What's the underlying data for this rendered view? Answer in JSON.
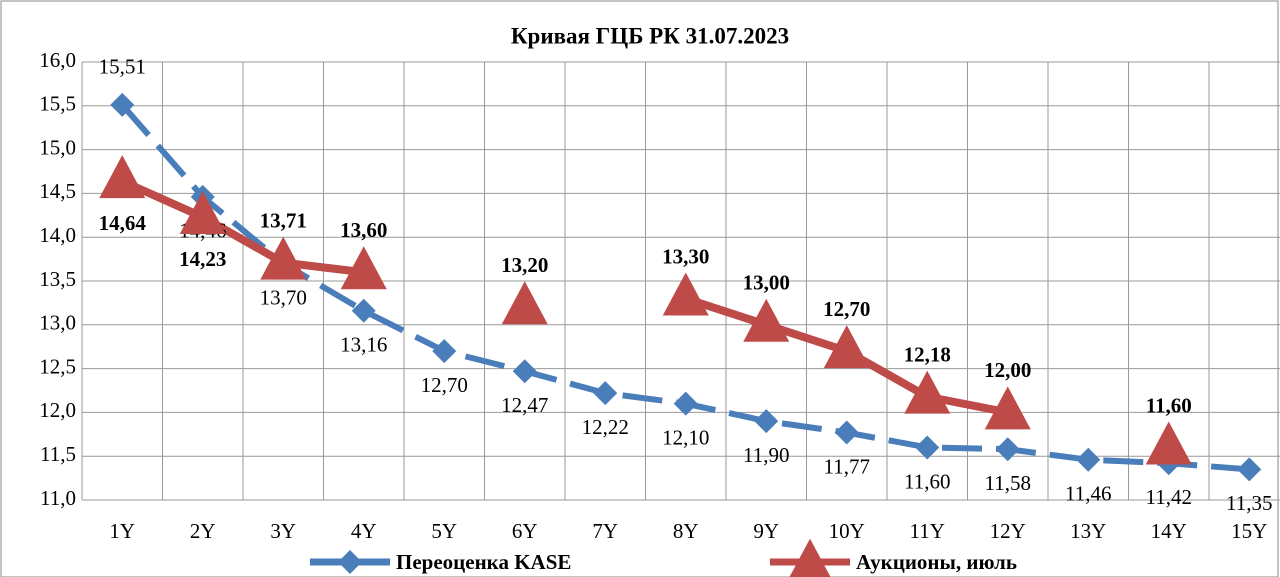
{
  "chart_data": {
    "type": "line",
    "title": "Кривая ГЦБ РК 31.07.2023",
    "categories": [
      "1Y",
      "2Y",
      "3Y",
      "4Y",
      "5Y",
      "6Y",
      "7Y",
      "8Y",
      "9Y",
      "10Y",
      "11Y",
      "12Y",
      "13Y",
      "14Y",
      "15Y"
    ],
    "series": [
      {
        "name": "Переоценка KASE",
        "color": "#4a7ebb",
        "marker": "diamond",
        "dashed": true,
        "values": [
          15.51,
          14.46,
          13.7,
          13.16,
          12.7,
          12.47,
          12.22,
          12.1,
          11.9,
          11.77,
          11.6,
          11.58,
          11.46,
          11.42,
          11.35
        ],
        "value_labels": [
          "15,51",
          "14,46",
          "13,70",
          "13,16",
          "12,70",
          "12,47",
          "12,22",
          "12,10",
          "11,90",
          "11,77",
          "11,60",
          "11,58",
          "11,46",
          "11,42",
          "11,35"
        ]
      },
      {
        "name": "Аукционы, июль",
        "color": "#be4b48",
        "marker": "triangle",
        "dashed": false,
        "values": [
          14.64,
          14.23,
          13.71,
          13.6,
          null,
          13.2,
          null,
          13.3,
          13.0,
          12.7,
          12.18,
          12.0,
          null,
          11.6,
          null
        ],
        "value_labels": [
          "14,64",
          "14,23",
          "13,71",
          "13,60",
          null,
          "13,20",
          null,
          "13,30",
          "13,00",
          "12,70",
          "12,18",
          "12,00",
          null,
          "11,60",
          null
        ]
      }
    ],
    "ylim": [
      11,
      16
    ],
    "yticks": [
      {
        "value": 11,
        "label": "11,0"
      },
      {
        "value": 11.5,
        "label": "11,5"
      },
      {
        "value": 12,
        "label": "12,0"
      },
      {
        "value": 12.5,
        "label": "12,5"
      },
      {
        "value": 13,
        "label": "13,0"
      },
      {
        "value": 13.5,
        "label": "13,5"
      },
      {
        "value": 14,
        "label": "14,0"
      },
      {
        "value": 14.5,
        "label": "14,5"
      },
      {
        "value": 15,
        "label": "15,0"
      },
      {
        "value": 15.5,
        "label": "15,5"
      },
      {
        "value": 16,
        "label": "16,0"
      }
    ],
    "grid": true
  }
}
